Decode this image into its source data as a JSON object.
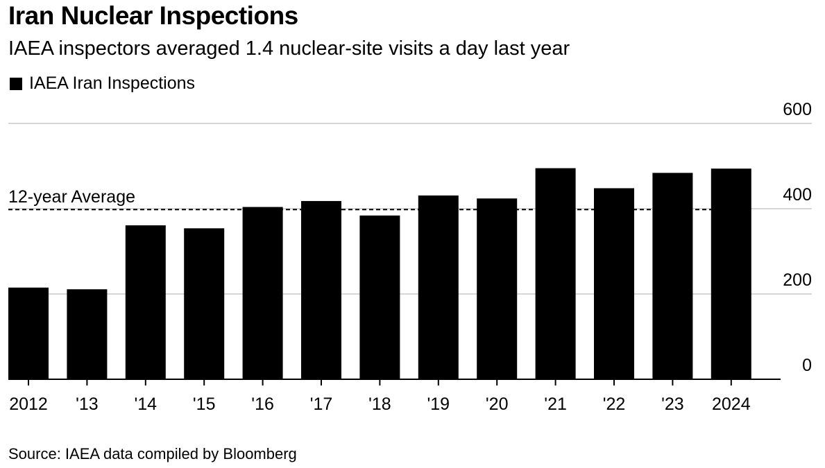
{
  "header": {
    "title": "Iran Nuclear Inspections",
    "subtitle": "IAEA inspectors averaged 1.4 nuclear-site visits a day last year"
  },
  "legend": {
    "label": "IAEA Iran Inspections",
    "color": "#000000"
  },
  "source": "Source: IAEA data compiled by Bloomberg",
  "chart_data": {
    "type": "bar",
    "title": "Iran Nuclear Inspections",
    "subtitle": "IAEA inspectors averaged 1.4 nuclear-site visits a day last year",
    "xlabel": "",
    "ylabel": "",
    "categories": [
      "2012",
      "'13",
      "'14",
      "'15",
      "'16",
      "'17",
      "'18",
      "'19",
      "'20",
      "'21",
      "'22",
      "'23",
      "2024"
    ],
    "series": [
      {
        "name": "IAEA Iran Inspections",
        "color": "#000000",
        "values": [
          215,
          211,
          361,
          354,
          404,
          418,
          384,
          431,
          424,
          495,
          448,
          484,
          494
        ]
      }
    ],
    "ylim": [
      0,
      600
    ],
    "yticks": [
      0,
      200,
      400,
      600
    ],
    "ytick_labels": [
      "0",
      "200",
      "400",
      "600"
    ],
    "y_axis_side": "right",
    "grid": true,
    "reference_line": {
      "label": "12-year Average",
      "value": 398,
      "style": "dashed"
    },
    "legend_position": "top-left"
  }
}
